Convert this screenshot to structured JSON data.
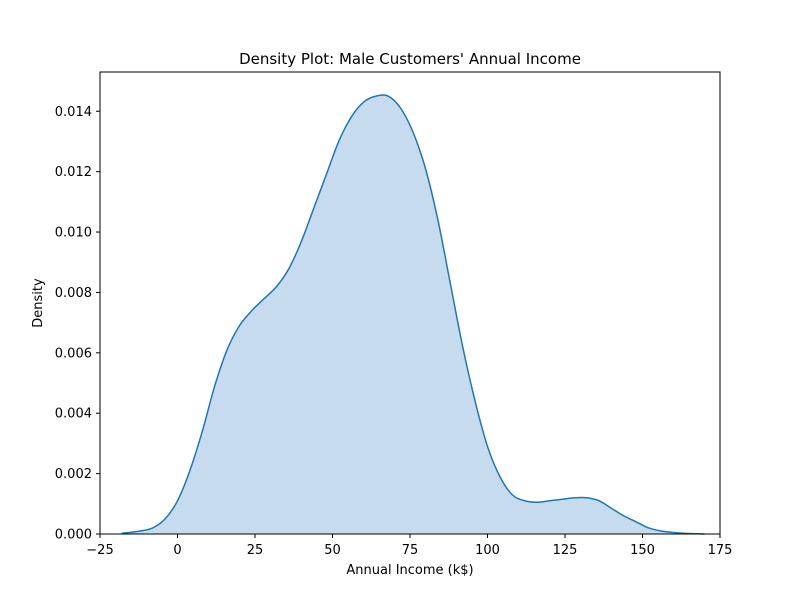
{
  "chart_data": {
    "type": "area",
    "title": "Density Plot: Male Customers' Annual Income",
    "xlabel": "Annual Income (k$)",
    "ylabel": "Density",
    "xlim": [
      -25,
      175
    ],
    "ylim": [
      0,
      0.0153
    ],
    "xticks": [
      -25,
      0,
      25,
      50,
      75,
      100,
      125,
      150,
      175
    ],
    "xtick_labels": [
      "−25",
      "0",
      "25",
      "50",
      "75",
      "100",
      "125",
      "150",
      "175"
    ],
    "yticks": [
      0,
      0.002,
      0.004,
      0.006,
      0.008,
      0.01,
      0.012,
      0.014
    ],
    "ytick_labels": [
      "0.000",
      "0.002",
      "0.004",
      "0.006",
      "0.008",
      "0.010",
      "0.012",
      "0.014"
    ],
    "grid": false,
    "colors": {
      "line": "#1f77b4",
      "fill": "#c6dbee"
    },
    "series": [
      {
        "x": [
          -18,
          -12,
          -8,
          -4,
          0,
          4,
          8,
          12,
          16,
          20,
          24,
          28,
          32,
          36,
          40,
          44,
          48,
          52,
          56,
          60,
          64,
          68,
          72,
          76,
          80,
          84,
          88,
          92,
          96,
          100,
          104,
          108,
          112,
          116,
          120,
          124,
          128,
          132,
          136,
          140,
          144,
          148,
          152,
          156,
          160,
          164,
          170
        ],
        "y": [
          2e-05,
          0.0001,
          0.0002,
          0.0005,
          0.0011,
          0.0021,
          0.0034,
          0.0049,
          0.0061,
          0.0069,
          0.0074,
          0.0078,
          0.0082,
          0.0088,
          0.0097,
          0.0108,
          0.0119,
          0.013,
          0.0138,
          0.0143,
          0.0145,
          0.0145,
          0.0141,
          0.0133,
          0.0121,
          0.0104,
          0.0083,
          0.0062,
          0.0044,
          0.0029,
          0.0019,
          0.0013,
          0.0011,
          0.00105,
          0.0011,
          0.00115,
          0.0012,
          0.0012,
          0.0011,
          0.00085,
          0.0006,
          0.0004,
          0.0002,
          0.0001,
          5e-05,
          2e-05,
          0.0
        ]
      }
    ]
  }
}
